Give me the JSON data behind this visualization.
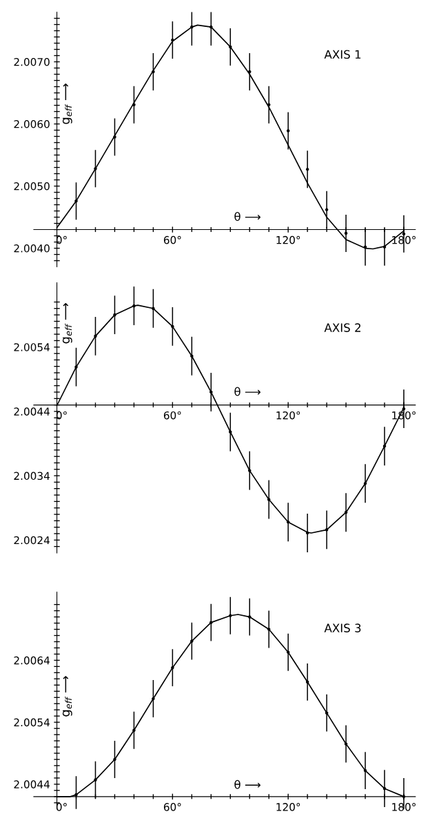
{
  "chart_data": [
    {
      "type": "line",
      "xlabel": "θ ⟶",
      "ylabel": "g$_{eff}$ ⟶",
      "annotations": [
        "AXIS 1"
      ],
      "xlim": [
        -12,
        186
      ],
      "ylim": [
        2.0037,
        2.0078
      ],
      "xticks": [
        {
          "value": 0,
          "label": "0°"
        },
        {
          "value": 60,
          "label": "60°"
        },
        {
          "value": 120,
          "label": "120°"
        },
        {
          "value": 180,
          "label": "180°"
        }
      ],
      "yticks": [
        {
          "value": 2.0038,
          "label": null
        },
        {
          "value": 2.0039,
          "label": null
        },
        {
          "value": 2.004,
          "label": "2.0040"
        },
        {
          "value": 2.0041,
          "label": null
        },
        {
          "value": 2.0042,
          "label": null
        },
        {
          "value": 2.0043,
          "label": null
        },
        {
          "value": 2.0044,
          "label": null
        },
        {
          "value": 2.0045,
          "label": null
        },
        {
          "value": 2.0046,
          "label": null
        },
        {
          "value": 2.0047,
          "label": null
        },
        {
          "value": 2.0048,
          "label": null
        },
        {
          "value": 2.0049,
          "label": null
        },
        {
          "value": 2.005,
          "label": "2.0050"
        },
        {
          "value": 2.0051,
          "label": null
        },
        {
          "value": 2.0052,
          "label": null
        },
        {
          "value": 2.0053,
          "label": null
        },
        {
          "value": 2.0054,
          "label": null
        },
        {
          "value": 2.0055,
          "label": null
        },
        {
          "value": 2.0056,
          "label": null
        },
        {
          "value": 2.0057,
          "label": null
        },
        {
          "value": 2.0058,
          "label": null
        },
        {
          "value": 2.0059,
          "label": null
        },
        {
          "value": 2.006,
          "label": "2.0060"
        },
        {
          "value": 2.0061,
          "label": null
        },
        {
          "value": 2.0062,
          "label": null
        },
        {
          "value": 2.0063,
          "label": null
        },
        {
          "value": 2.0064,
          "label": null
        },
        {
          "value": 2.0065,
          "label": null
        },
        {
          "value": 2.0066,
          "label": null
        },
        {
          "value": 2.0067,
          "label": null
        },
        {
          "value": 2.0068,
          "label": null
        },
        {
          "value": 2.0069,
          "label": null
        },
        {
          "value": 2.007,
          "label": "2.0070"
        },
        {
          "value": 2.0071,
          "label": null
        },
        {
          "value": 2.0072,
          "label": null
        },
        {
          "value": 2.0073,
          "label": null
        },
        {
          "value": 2.0074,
          "label": null
        },
        {
          "value": 2.0075,
          "label": null
        },
        {
          "value": 2.0076,
          "label": null
        },
        {
          "value": 2.0077,
          "label": null
        }
      ],
      "series": [
        {
          "color": "#000000",
          "line_style": "solid",
          "x": [
            0,
            10,
            20,
            30,
            40,
            50,
            60,
            70,
            73,
            80,
            90,
            100,
            110,
            120,
            130,
            140,
            150,
            160,
            164,
            170,
            180
          ],
          "values": [
            2.00433,
            2.00476,
            2.00528,
            2.00581,
            2.00634,
            2.00686,
            2.00733,
            2.00756,
            2.00759,
            2.00756,
            2.00724,
            2.0068,
            2.00627,
            2.00566,
            2.00505,
            2.0045,
            2.00414,
            2.004,
            2.00399,
            2.00403,
            2.00428
          ]
        },
        {
          "type": "scatter",
          "color": "#000000",
          "marker": "circle",
          "x": [
            10,
            20,
            30,
            40,
            50,
            60,
            70,
            80,
            90,
            100,
            110,
            120,
            130,
            140,
            150,
            160,
            170,
            180
          ],
          "values": [
            2.00476,
            2.00528,
            2.00579,
            2.00631,
            2.00684,
            2.00735,
            2.00756,
            2.00756,
            2.00724,
            2.00684,
            2.00631,
            2.00589,
            2.00527,
            2.00462,
            2.00424,
            2.00402,
            2.00402,
            2.00423
          ],
          "errors": [
            0.0003,
            0.0003,
            0.0003,
            0.0003,
            0.0003,
            0.0003,
            0.0003,
            0.0003,
            0.0003,
            0.0003,
            0.0003,
            0.0003,
            0.0003,
            0.0003,
            0.0003,
            0.0003,
            0.0003,
            0.0003
          ]
        }
      ]
    },
    {
      "type": "line",
      "xlabel": "θ ⟶",
      "ylabel": "g$_{eff}$ ⟶",
      "annotations": [
        "AXIS 2"
      ],
      "xlim": [
        -12,
        186
      ],
      "ylim": [
        2.0022,
        2.0064
      ],
      "xticks": [
        {
          "value": 0,
          "label": "0°"
        },
        {
          "value": 60,
          "label": "60°"
        },
        {
          "value": 120,
          "label": "120°"
        },
        {
          "value": 180,
          "label": "180°"
        }
      ],
      "yticks": [
        {
          "value": 2.0023,
          "label": null
        },
        {
          "value": 2.0024,
          "label": "2.0024"
        },
        {
          "value": 2.0025,
          "label": null
        },
        {
          "value": 2.0026,
          "label": null
        },
        {
          "value": 2.0027,
          "label": null
        },
        {
          "value": 2.0028,
          "label": null
        },
        {
          "value": 2.0029,
          "label": null
        },
        {
          "value": 2.003,
          "label": null
        },
        {
          "value": 2.0031,
          "label": null
        },
        {
          "value": 2.0032,
          "label": null
        },
        {
          "value": 2.0033,
          "label": null
        },
        {
          "value": 2.0034,
          "label": "2.0034"
        },
        {
          "value": 2.0035,
          "label": null
        },
        {
          "value": 2.0036,
          "label": null
        },
        {
          "value": 2.0037,
          "label": null
        },
        {
          "value": 2.0038,
          "label": null
        },
        {
          "value": 2.0039,
          "label": null
        },
        {
          "value": 2.004,
          "label": null
        },
        {
          "value": 2.0041,
          "label": null
        },
        {
          "value": 2.0042,
          "label": null
        },
        {
          "value": 2.0043,
          "label": null
        },
        {
          "value": 2.0044,
          "label": "2.0044"
        },
        {
          "value": 2.0045,
          "label": null
        },
        {
          "value": 2.0046,
          "label": null
        },
        {
          "value": 2.0047,
          "label": null
        },
        {
          "value": 2.0048,
          "label": null
        },
        {
          "value": 2.0049,
          "label": null
        },
        {
          "value": 2.005,
          "label": null
        },
        {
          "value": 2.0051,
          "label": null
        },
        {
          "value": 2.0052,
          "label": null
        },
        {
          "value": 2.0053,
          "label": null
        },
        {
          "value": 2.0054,
          "label": "2.0054"
        },
        {
          "value": 2.0055,
          "label": null
        },
        {
          "value": 2.0056,
          "label": null
        },
        {
          "value": 2.0057,
          "label": null
        },
        {
          "value": 2.0058,
          "label": null
        },
        {
          "value": 2.0059,
          "label": null
        },
        {
          "value": 2.006,
          "label": null
        },
        {
          "value": 2.0061,
          "label": null
        }
      ],
      "series": [
        {
          "color": "#000000",
          "line_style": "solid",
          "x": [
            0,
            10,
            20,
            30,
            40,
            42,
            50,
            60,
            70,
            80,
            90,
            100,
            110,
            120,
            130,
            132,
            140,
            150,
            160,
            170,
            180
          ],
          "values": [
            2.00449,
            2.00509,
            2.00557,
            2.0059,
            2.00604,
            2.00605,
            2.006,
            2.00572,
            2.00526,
            2.0047,
            2.00408,
            2.00348,
            2.00303,
            2.00268,
            2.00252,
            2.00251,
            2.00256,
            2.00283,
            2.00328,
            2.00386,
            2.00446
          ]
        },
        {
          "type": "scatter",
          "color": "#000000",
          "marker": "circle",
          "x": [
            10,
            20,
            30,
            40,
            50,
            60,
            70,
            80,
            90,
            100,
            110,
            120,
            130,
            140,
            150,
            160,
            170,
            180
          ],
          "values": [
            2.00509,
            2.00557,
            2.0059,
            2.00604,
            2.006,
            2.00572,
            2.00526,
            2.0047,
            2.00408,
            2.00348,
            2.00303,
            2.00268,
            2.00251,
            2.00256,
            2.00283,
            2.00328,
            2.00386,
            2.00444
          ],
          "errors": [
            0.0003,
            0.0003,
            0.0003,
            0.0003,
            0.0003,
            0.0003,
            0.0003,
            0.0003,
            0.0003,
            0.0003,
            0.0003,
            0.0003,
            0.0003,
            0.0003,
            0.0003,
            0.0003,
            0.0003,
            0.0003
          ]
        }
      ]
    },
    {
      "type": "line",
      "xlabel": "θ ⟶",
      "ylabel": "g$_{eff}$ ⟶",
      "annotations": [
        "AXIS 3"
      ],
      "xlim": [
        -12,
        186
      ],
      "ylim": [
        2.004,
        2.0075
      ],
      "xticks": [
        {
          "value": 0,
          "label": "0°"
        },
        {
          "value": 60,
          "label": "60°"
        },
        {
          "value": 120,
          "label": "120°"
        },
        {
          "value": 180,
          "label": "180°"
        }
      ],
      "yticks": [
        {
          "value": 2.0041,
          "label": null
        },
        {
          "value": 2.0042,
          "label": null
        },
        {
          "value": 2.0043,
          "label": null
        },
        {
          "value": 2.0044,
          "label": "2.0044"
        },
        {
          "value": 2.0045,
          "label": null
        },
        {
          "value": 2.0046,
          "label": null
        },
        {
          "value": 2.0047,
          "label": null
        },
        {
          "value": 2.0048,
          "label": null
        },
        {
          "value": 2.0049,
          "label": null
        },
        {
          "value": 2.005,
          "label": null
        },
        {
          "value": 2.0051,
          "label": null
        },
        {
          "value": 2.0052,
          "label": null
        },
        {
          "value": 2.0053,
          "label": null
        },
        {
          "value": 2.0054,
          "label": "2.0054"
        },
        {
          "value": 2.0055,
          "label": null
        },
        {
          "value": 2.0056,
          "label": null
        },
        {
          "value": 2.0057,
          "label": null
        },
        {
          "value": 2.0058,
          "label": null
        },
        {
          "value": 2.0059,
          "label": null
        },
        {
          "value": 2.006,
          "label": null
        },
        {
          "value": 2.0061,
          "label": null
        },
        {
          "value": 2.0062,
          "label": null
        },
        {
          "value": 2.0063,
          "label": null
        },
        {
          "value": 2.0064,
          "label": "2.0064"
        },
        {
          "value": 2.0065,
          "label": null
        },
        {
          "value": 2.0066,
          "label": null
        },
        {
          "value": 2.0067,
          "label": null
        },
        {
          "value": 2.0068,
          "label": null
        },
        {
          "value": 2.0069,
          "label": null
        },
        {
          "value": 2.007,
          "label": null
        },
        {
          "value": 2.0071,
          "label": null
        },
        {
          "value": 2.0072,
          "label": null
        },
        {
          "value": 2.0073,
          "label": null
        }
      ],
      "series": [
        {
          "color": "#000000",
          "line_style": "solid",
          "x": [
            0,
            7,
            10,
            20,
            30,
            40,
            50,
            60,
            70,
            80,
            90,
            94,
            100,
            110,
            120,
            130,
            140,
            150,
            160,
            170,
            180
          ],
          "values": [
            2.0042,
            2.0042,
            2.00423,
            2.00447,
            2.0048,
            2.00527,
            2.00578,
            2.00628,
            2.00671,
            2.00701,
            2.00712,
            2.00714,
            2.0071,
            2.0069,
            2.00653,
            2.00605,
            2.00555,
            2.00505,
            2.00462,
            2.00433,
            2.0042
          ]
        },
        {
          "type": "scatter",
          "color": "#000000",
          "marker": "circle",
          "x": [
            10,
            20,
            30,
            40,
            50,
            60,
            70,
            80,
            90,
            100,
            110,
            120,
            130,
            140,
            150,
            160,
            170,
            180
          ],
          "values": [
            2.00423,
            2.00447,
            2.0048,
            2.00527,
            2.00578,
            2.00628,
            2.00671,
            2.00701,
            2.00712,
            2.0071,
            2.0069,
            2.00653,
            2.00605,
            2.00555,
            2.00505,
            2.00462,
            2.00433,
            2.0042
          ],
          "errors": [
            0.0003,
            0.0003,
            0.0003,
            0.0003,
            0.0003,
            0.0003,
            0.0003,
            0.0003,
            0.0003,
            0.0003,
            0.0003,
            0.0003,
            0.0003,
            0.0003,
            0.0003,
            0.0003,
            0.0003,
            0.0003
          ]
        }
      ]
    }
  ]
}
